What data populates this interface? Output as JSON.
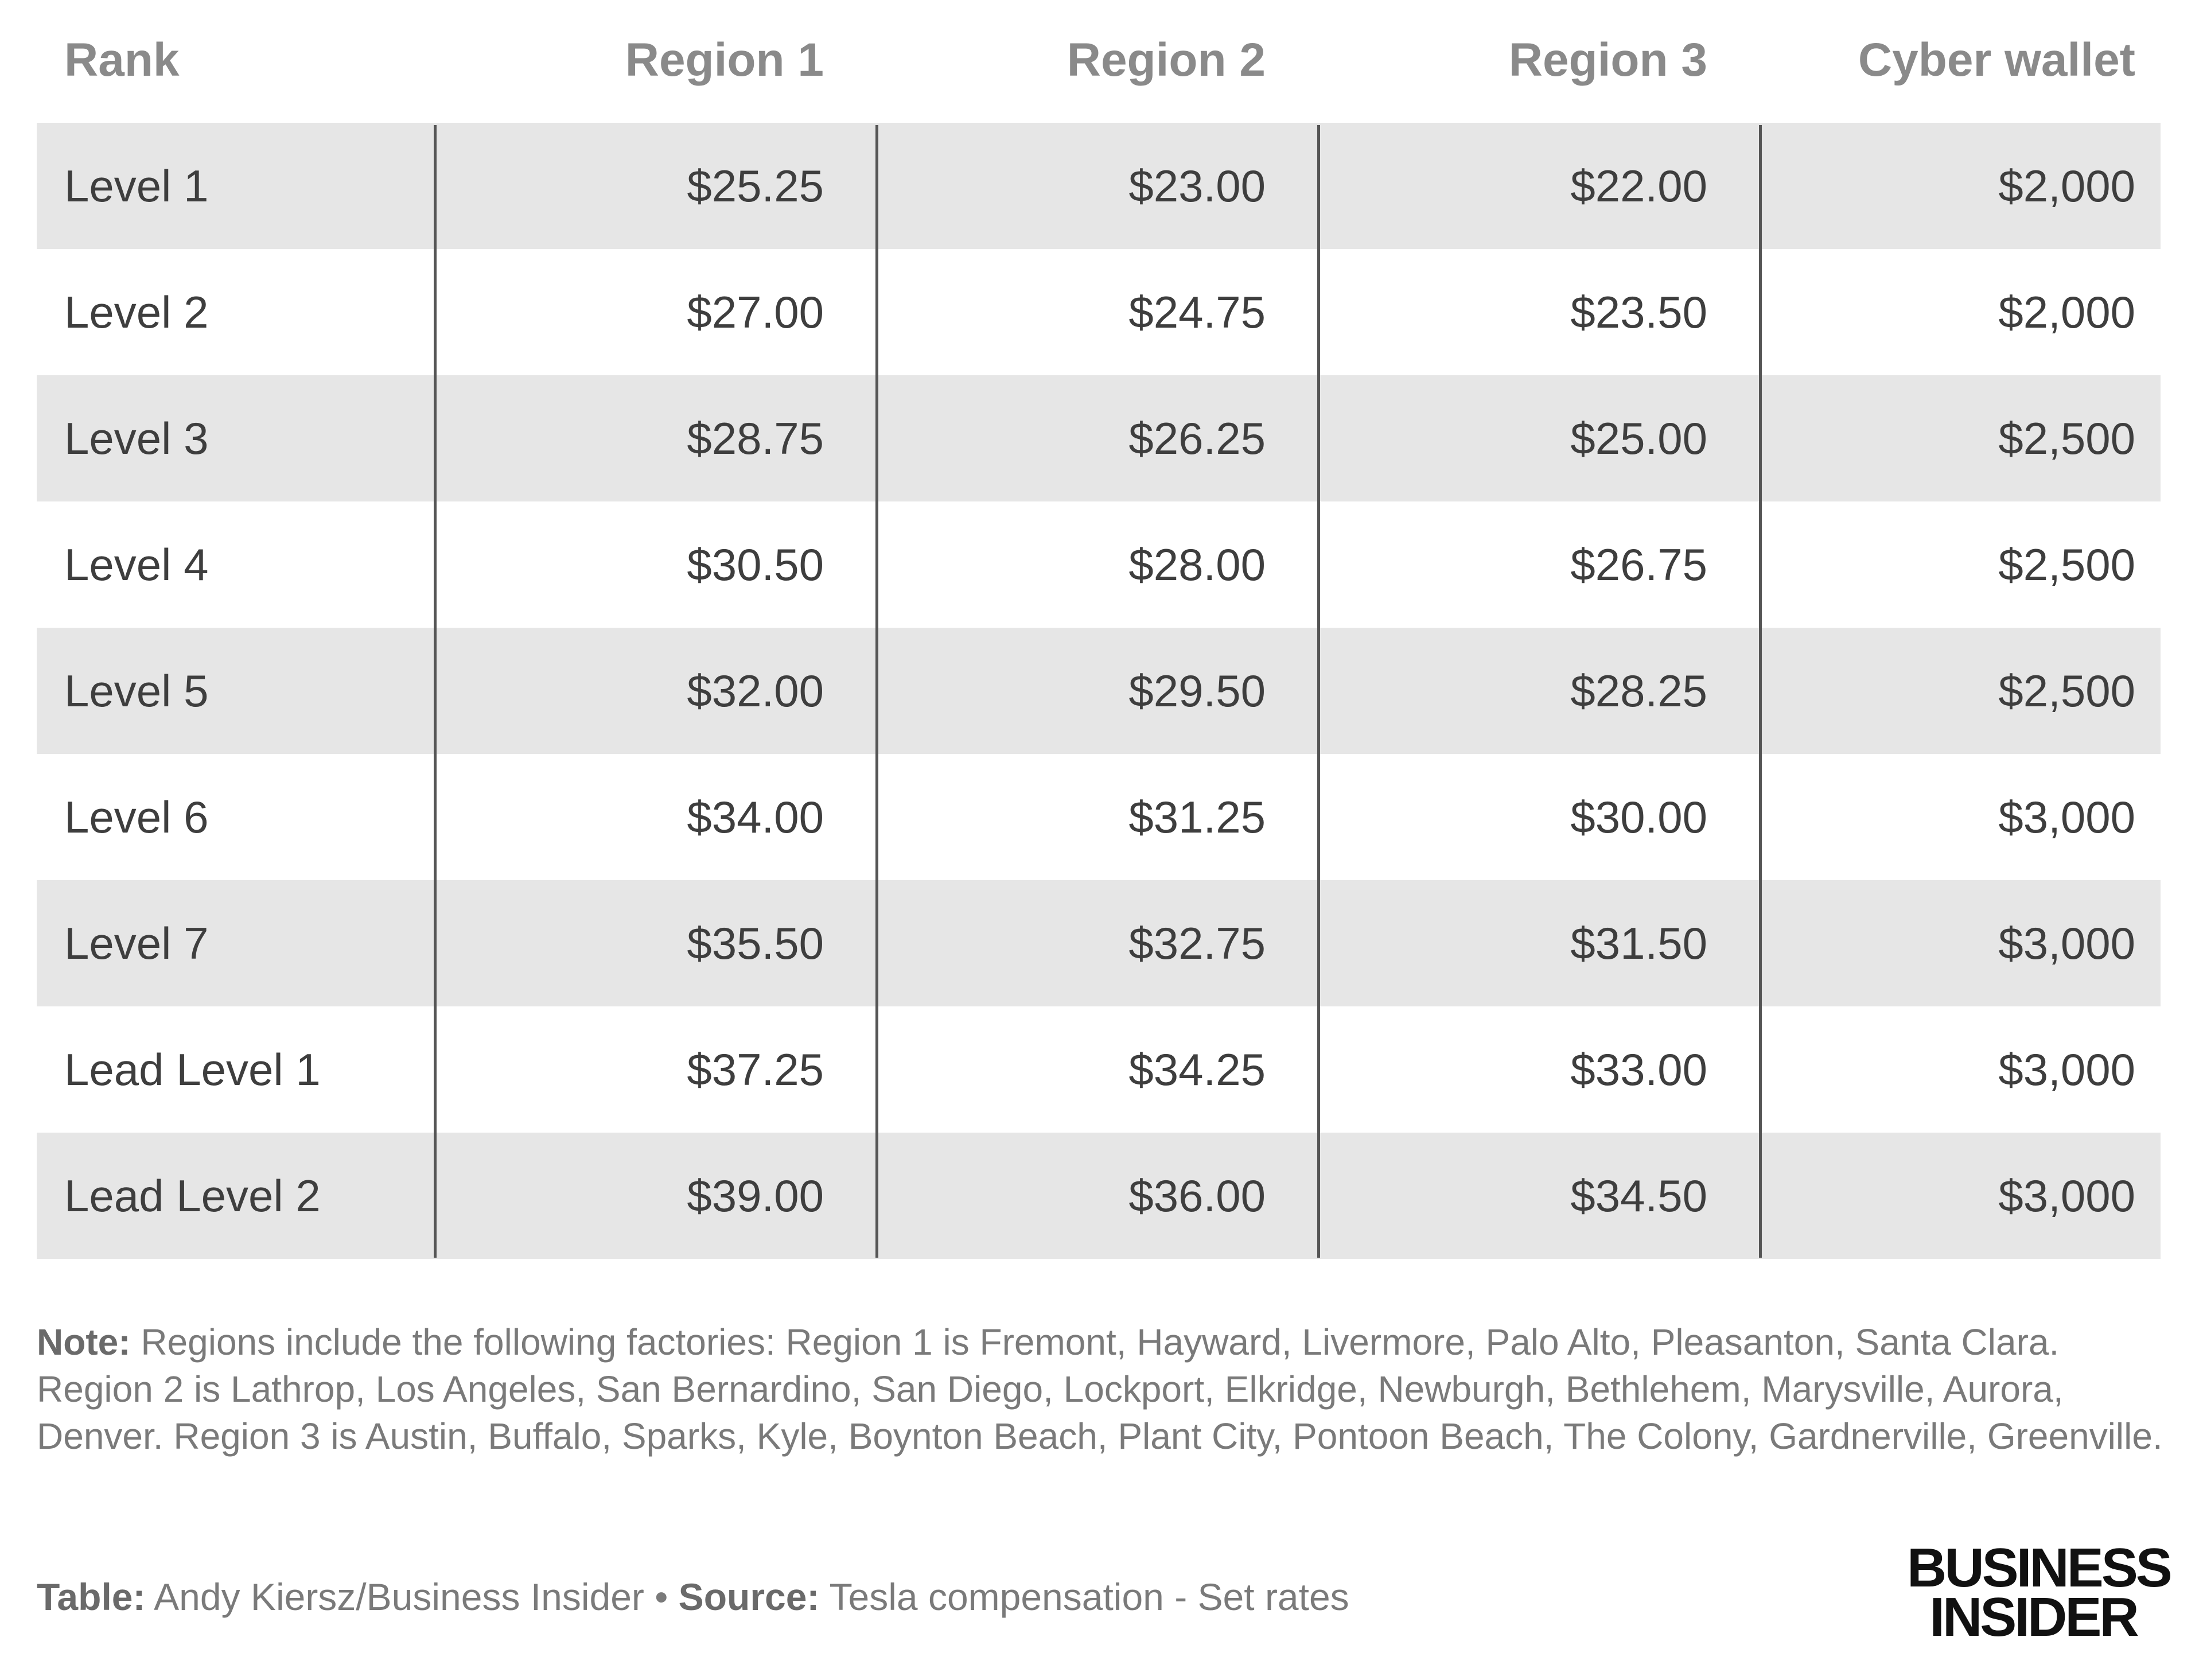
{
  "chart_data": {
    "type": "table",
    "columns": [
      "Rank",
      "Region 1",
      "Region 2",
      "Region 3",
      "Cyber wallet"
    ],
    "rows": [
      [
        "Level 1",
        "$25.25",
        "$23.00",
        "$22.00",
        "$2,000"
      ],
      [
        "Level 2",
        "$27.00",
        "$24.75",
        "$23.50",
        "$2,000"
      ],
      [
        "Level 3",
        "$28.75",
        "$26.25",
        "$25.00",
        "$2,500"
      ],
      [
        "Level 4",
        "$30.50",
        "$28.00",
        "$26.75",
        "$2,500"
      ],
      [
        "Level 5",
        "$32.00",
        "$29.50",
        "$28.25",
        "$2,500"
      ],
      [
        "Level 6",
        "$34.00",
        "$31.25",
        "$30.00",
        "$3,000"
      ],
      [
        "Level 7",
        "$35.50",
        "$32.75",
        "$31.50",
        "$3,000"
      ],
      [
        "Lead Level 1",
        "$37.25",
        "$34.25",
        "$33.00",
        "$3,000"
      ],
      [
        "Lead Level 2",
        "$39.00",
        "$36.00",
        "$34.50",
        "$3,000"
      ]
    ]
  },
  "note": {
    "label": "Note:",
    "text": " Regions include the following factories: Region 1 is Fremont, Hayward, Livermore, Palo Alto, Pleasanton, Santa Clara. Region 2 is Lathrop, Los Angeles, San Bernardino, San Diego, Lockport, Elkridge, Newburgh, Bethlehem, Marysville, Aurora, Denver. Region 3 is Austin, Buffalo, Sparks, Kyle, Boynton Beach, Plant City, Pontoon Beach, The Colony, Gardnerville, Greenville."
  },
  "credit": {
    "table_label": "Table:",
    "table_text": " Andy Kiersz/Business Insider • ",
    "source_label": "Source:",
    "source_text": " Tesla compensation - Set rates"
  },
  "logo": {
    "line1": "BUSINESS",
    "line2": "INSIDER"
  },
  "colors": {
    "shaded_row": "#e6e6e6",
    "header_text": "#8a8a8a",
    "divider": "#555555"
  }
}
